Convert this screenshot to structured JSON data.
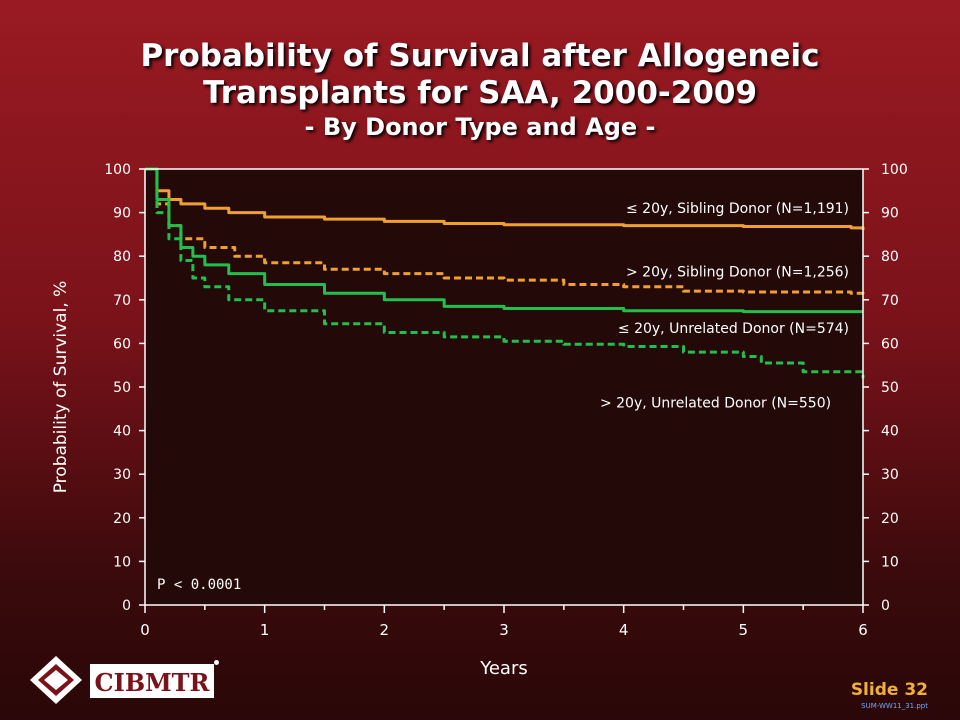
{
  "title": {
    "line1": "Probability of Survival after Allogeneic",
    "line2": "Transplants for SAA, 2000-2009",
    "subtitle": "- By Donor Type and Age -"
  },
  "colors": {
    "plot_bg": "#230908",
    "sibling": "#f0a030",
    "unrelated": "#22c04a",
    "axis": "#ffffff"
  },
  "chart_data": {
    "type": "line",
    "xlabel": "Years",
    "ylabel": "Probability of Survival, %",
    "xlim": [
      0,
      6
    ],
    "ylim": [
      0,
      100
    ],
    "x_ticks": [
      "0",
      "1",
      "2",
      "3",
      "4",
      "5",
      "6"
    ],
    "y_ticks": [
      "0",
      "10",
      "20",
      "30",
      "40",
      "50",
      "60",
      "70",
      "80",
      "90",
      "100"
    ],
    "grid": false,
    "annotation": "P < 0.0001",
    "series": [
      {
        "name": "≤ 20y, Sibling Donor (N=1,191)",
        "style": "solid",
        "color": "#f0a030",
        "x": [
          0,
          0.1,
          0.2,
          0.3,
          0.5,
          0.7,
          1.0,
          1.5,
          2.0,
          2.5,
          3.0,
          4.0,
          5.0,
          5.9,
          6.0
        ],
        "y": [
          100,
          95,
          93,
          92,
          91,
          90,
          89,
          88.5,
          88,
          87.5,
          87.2,
          87,
          86.8,
          86.5,
          86
        ]
      },
      {
        "name": "> 20y, Sibling Donor (N=1,256)",
        "style": "dashed",
        "color": "#f0a030",
        "x": [
          0,
          0.1,
          0.2,
          0.3,
          0.5,
          0.75,
          1.0,
          1.5,
          2.0,
          2.5,
          3.0,
          3.5,
          4.0,
          4.5,
          5.0,
          5.9,
          6.0
        ],
        "y": [
          100,
          92,
          87,
          84,
          82,
          80,
          78.5,
          77,
          76,
          75,
          74.5,
          73.5,
          73,
          72,
          71.8,
          71.5,
          70.5
        ]
      },
      {
        "name": "≤ 20y, Unrelated Donor (N=574)",
        "style": "solid",
        "color": "#22c04a",
        "x": [
          0,
          0.1,
          0.2,
          0.3,
          0.4,
          0.5,
          0.7,
          1.0,
          1.5,
          2.0,
          2.5,
          3.0,
          4.0,
          5.0,
          6.0
        ],
        "y": [
          100,
          93,
          87,
          82,
          80,
          78,
          76,
          73.5,
          71.5,
          70,
          68.5,
          68,
          67.5,
          67.3,
          67.3
        ]
      },
      {
        "name": "> 20y, Unrelated Donor (N=550)",
        "style": "dashed",
        "color": "#22c04a",
        "x": [
          0,
          0.1,
          0.2,
          0.3,
          0.4,
          0.5,
          0.7,
          1.0,
          1.5,
          2.0,
          2.5,
          3.0,
          3.5,
          4.0,
          4.5,
          5.0,
          5.15,
          5.5,
          6.0
        ],
        "y": [
          100,
          90,
          84,
          79,
          75,
          73,
          70,
          67.5,
          64.5,
          62.5,
          61.5,
          60.5,
          59.8,
          59.3,
          58,
          57,
          55.5,
          53.5,
          52
        ]
      }
    ],
    "labels": [
      {
        "text": "≤ 20y, Sibling Donor (N=1,191)",
        "anchor_y": 91,
        "anchor_x": 5.95
      },
      {
        "text": "> 20y, Sibling Donor (N=1,256)",
        "anchor_y": 76.5,
        "anchor_x": 5.95
      },
      {
        "text": "≤ 20y, Unrelated Donor (N=574)",
        "anchor_y": 63.5,
        "anchor_x": 5.95
      },
      {
        "text": "> 20y, Unrelated Donor (N=550)",
        "anchor_y": 46.5,
        "anchor_x": 5.8
      }
    ]
  },
  "footer": {
    "logo_text": "CIBMTR",
    "slide_label": "Slide 32",
    "file_name": "SUM-WW11_31.ppt"
  }
}
